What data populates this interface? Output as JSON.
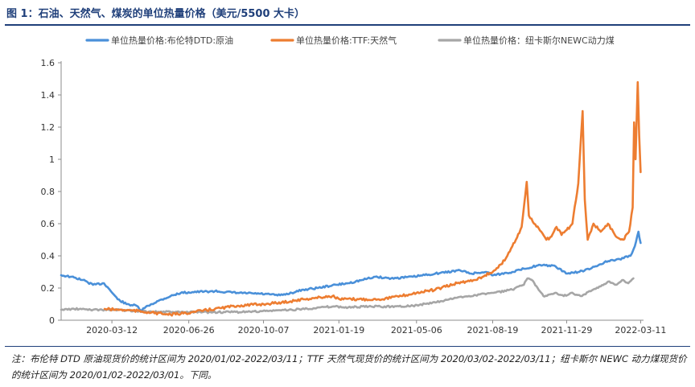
{
  "title": "图 1：石油、天然气、煤炭的单位热量价格（美元/5500 大卡）",
  "note": "注：布伦特 DTD 原油现货价的统计区间为 2020/01/02-2022/03/11；TTF 天然气现货价的统计区间为 2020/03/02-2022/03/11；纽卡斯尔 NEWC 动力煤现货价的统计区间为 2020/01/02-2022/03/01。下同。",
  "chart_data": {
    "type": "line",
    "title": "",
    "xlabel": "",
    "ylabel": "",
    "ylim": [
      0,
      1.6
    ],
    "yticks": [
      "0",
      "0.2",
      "0.4",
      "0.6",
      "0.8",
      "1",
      "1.2",
      "1.4",
      "1.6"
    ],
    "xlim": [
      "2020-01-02",
      "2022-03-15"
    ],
    "xticks": [
      "2020-03-12",
      "2020-06-26",
      "2020-10-07",
      "2021-01-19",
      "2021-05-06",
      "2021-08-19",
      "2021-11-29",
      "2022-03-11"
    ],
    "grid": false,
    "legend_position": "top",
    "series": [
      {
        "name": "单位热量价格:布伦特DTD:原油",
        "color": "#4a90d9",
        "points": [
          [
            "2020-01-02",
            0.28
          ],
          [
            "2020-01-15",
            0.27
          ],
          [
            "2020-02-01",
            0.25
          ],
          [
            "2020-02-15",
            0.22
          ],
          [
            "2020-03-01",
            0.23
          ],
          [
            "2020-03-09",
            0.19
          ],
          [
            "2020-03-20",
            0.13
          ],
          [
            "2020-04-01",
            0.1
          ],
          [
            "2020-04-15",
            0.09
          ],
          [
            "2020-04-21",
            0.06
          ],
          [
            "2020-05-01",
            0.09
          ],
          [
            "2020-05-15",
            0.12
          ],
          [
            "2020-06-01",
            0.15
          ],
          [
            "2020-06-15",
            0.17
          ],
          [
            "2020-07-01",
            0.175
          ],
          [
            "2020-08-01",
            0.18
          ],
          [
            "2020-09-01",
            0.17
          ],
          [
            "2020-10-01",
            0.165
          ],
          [
            "2020-10-30",
            0.155
          ],
          [
            "2020-11-15",
            0.17
          ],
          [
            "2020-12-01",
            0.19
          ],
          [
            "2020-12-20",
            0.2
          ],
          [
            "2021-01-15",
            0.22
          ],
          [
            "2021-02-01",
            0.23
          ],
          [
            "2021-02-20",
            0.25
          ],
          [
            "2021-03-10",
            0.27
          ],
          [
            "2021-04-01",
            0.26
          ],
          [
            "2021-05-01",
            0.27
          ],
          [
            "2021-06-01",
            0.29
          ],
          [
            "2021-07-05",
            0.31
          ],
          [
            "2021-07-20",
            0.29
          ],
          [
            "2021-08-10",
            0.3
          ],
          [
            "2021-08-20",
            0.28
          ],
          [
            "2021-09-15",
            0.3
          ],
          [
            "2021-10-01",
            0.32
          ],
          [
            "2021-10-20",
            0.34
          ],
          [
            "2021-11-10",
            0.34
          ],
          [
            "2021-11-30",
            0.29
          ],
          [
            "2021-12-15",
            0.3
          ],
          [
            "2022-01-01",
            0.32
          ],
          [
            "2022-01-20",
            0.36
          ],
          [
            "2022-02-10",
            0.38
          ],
          [
            "2022-02-25",
            0.4
          ],
          [
            "2022-03-03",
            0.46
          ],
          [
            "2022-03-08",
            0.55
          ],
          [
            "2022-03-11",
            0.48
          ]
        ]
      },
      {
        "name": "单位热量价格:TTF:天然气",
        "color": "#ed7d31",
        "points": [
          [
            "2020-03-02",
            0.07
          ],
          [
            "2020-03-20",
            0.065
          ],
          [
            "2020-04-10",
            0.06
          ],
          [
            "2020-05-01",
            0.05
          ],
          [
            "2020-05-20",
            0.04
          ],
          [
            "2020-06-01",
            0.035
          ],
          [
            "2020-06-15",
            0.04
          ],
          [
            "2020-07-01",
            0.05
          ],
          [
            "2020-08-01",
            0.07
          ],
          [
            "2020-09-01",
            0.09
          ],
          [
            "2020-10-07",
            0.1
          ],
          [
            "2020-11-01",
            0.11
          ],
          [
            "2020-12-01",
            0.13
          ],
          [
            "2021-01-10",
            0.15
          ],
          [
            "2021-01-20",
            0.13
          ],
          [
            "2021-02-15",
            0.13
          ],
          [
            "2021-03-15",
            0.13
          ],
          [
            "2021-04-15",
            0.15
          ],
          [
            "2021-05-06",
            0.17
          ],
          [
            "2021-06-01",
            0.19
          ],
          [
            "2021-07-01",
            0.23
          ],
          [
            "2021-07-25",
            0.25
          ],
          [
            "2021-08-19",
            0.3
          ],
          [
            "2021-09-01",
            0.35
          ],
          [
            "2021-09-10",
            0.42
          ],
          [
            "2021-09-20",
            0.5
          ],
          [
            "2021-09-28",
            0.58
          ],
          [
            "2021-10-05",
            0.86
          ],
          [
            "2021-10-08",
            0.65
          ],
          [
            "2021-10-15",
            0.6
          ],
          [
            "2021-10-25",
            0.55
          ],
          [
            "2021-11-01",
            0.5
          ],
          [
            "2021-11-08",
            0.52
          ],
          [
            "2021-11-15",
            0.58
          ],
          [
            "2021-11-22",
            0.53
          ],
          [
            "2021-11-29",
            0.56
          ],
          [
            "2021-12-07",
            0.6
          ],
          [
            "2021-12-15",
            0.85
          ],
          [
            "2021-12-21",
            1.3
          ],
          [
            "2021-12-24",
            0.75
          ],
          [
            "2021-12-28",
            0.5
          ],
          [
            "2022-01-05",
            0.6
          ],
          [
            "2022-01-15",
            0.55
          ],
          [
            "2022-01-25",
            0.6
          ],
          [
            "2022-02-05",
            0.52
          ],
          [
            "2022-02-15",
            0.5
          ],
          [
            "2022-02-23",
            0.55
          ],
          [
            "2022-02-28",
            0.7
          ],
          [
            "2022-03-02",
            1.23
          ],
          [
            "2022-03-04",
            1.0
          ],
          [
            "2022-03-07",
            1.48
          ],
          [
            "2022-03-09",
            1.15
          ],
          [
            "2022-03-11",
            0.92
          ]
        ]
      },
      {
        "name": "单位热量价格：纽卡斯尔NEWC动力煤",
        "color": "#a6a6a6",
        "points": [
          [
            "2020-01-02",
            0.065
          ],
          [
            "2020-01-20",
            0.07
          ],
          [
            "2020-02-15",
            0.065
          ],
          [
            "2020-03-15",
            0.065
          ],
          [
            "2020-04-15",
            0.058
          ],
          [
            "2020-05-15",
            0.052
          ],
          [
            "2020-06-15",
            0.05
          ],
          [
            "2020-07-15",
            0.05
          ],
          [
            "2020-08-15",
            0.05
          ],
          [
            "2020-09-15",
            0.052
          ],
          [
            "2020-10-15",
            0.058
          ],
          [
            "2020-11-15",
            0.065
          ],
          [
            "2020-12-15",
            0.075
          ],
          [
            "2021-01-10",
            0.085
          ],
          [
            "2021-02-01",
            0.08
          ],
          [
            "2021-03-01",
            0.085
          ],
          [
            "2021-04-01",
            0.085
          ],
          [
            "2021-05-01",
            0.09
          ],
          [
            "2021-06-01",
            0.11
          ],
          [
            "2021-07-01",
            0.14
          ],
          [
            "2021-08-01",
            0.16
          ],
          [
            "2021-08-20",
            0.17
          ],
          [
            "2021-09-15",
            0.19
          ],
          [
            "2021-10-01",
            0.22
          ],
          [
            "2021-10-06",
            0.26
          ],
          [
            "2021-10-12",
            0.25
          ],
          [
            "2021-10-20",
            0.2
          ],
          [
            "2021-10-28",
            0.15
          ],
          [
            "2021-11-05",
            0.16
          ],
          [
            "2021-11-15",
            0.17
          ],
          [
            "2021-11-25",
            0.15
          ],
          [
            "2021-12-05",
            0.17
          ],
          [
            "2021-12-20",
            0.15
          ],
          [
            "2022-01-01",
            0.18
          ],
          [
            "2022-01-15",
            0.21
          ],
          [
            "2022-01-25",
            0.24
          ],
          [
            "2022-02-05",
            0.22
          ],
          [
            "2022-02-15",
            0.25
          ],
          [
            "2022-02-22",
            0.23
          ],
          [
            "2022-03-01",
            0.26
          ]
        ]
      }
    ]
  }
}
